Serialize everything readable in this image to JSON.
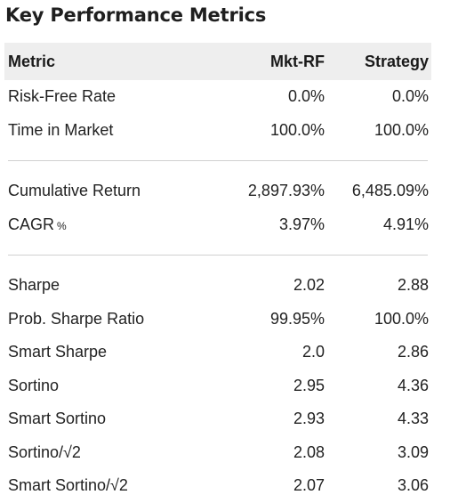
{
  "title": "Key Performance Metrics",
  "header": {
    "metric": "Metric",
    "mkt": "Mkt-RF",
    "strategy": "Strategy"
  },
  "group1": [
    {
      "metric": "Risk-Free Rate",
      "mkt": "0.0%",
      "strategy": "0.0%"
    },
    {
      "metric": "Time in Market",
      "mkt": "100.0%",
      "strategy": "100.0%"
    }
  ],
  "group2": [
    {
      "metric": "Cumulative Return",
      "mkt": "2,897.93%",
      "strategy": "6,485.09%"
    },
    {
      "metric": "CAGR",
      "suffix": "%",
      "mkt": "3.97%",
      "strategy": "4.91%"
    }
  ],
  "group3": [
    {
      "metric": "Sharpe",
      "mkt": "2.02",
      "strategy": "2.88"
    },
    {
      "metric": "Prob. Sharpe Ratio",
      "mkt": "99.95%",
      "strategy": "100.0%"
    },
    {
      "metric": "Smart Sharpe",
      "mkt": "2.0",
      "strategy": "2.86"
    },
    {
      "metric": "Sortino",
      "mkt": "2.95",
      "strategy": "4.36"
    },
    {
      "metric": "Smart Sortino",
      "mkt": "2.93",
      "strategy": "4.33"
    },
    {
      "metric": "Sortino/√2",
      "mkt": "2.08",
      "strategy": "3.09"
    },
    {
      "metric": "Smart Sortino/√2",
      "mkt": "2.07",
      "strategy": "3.06"
    }
  ]
}
